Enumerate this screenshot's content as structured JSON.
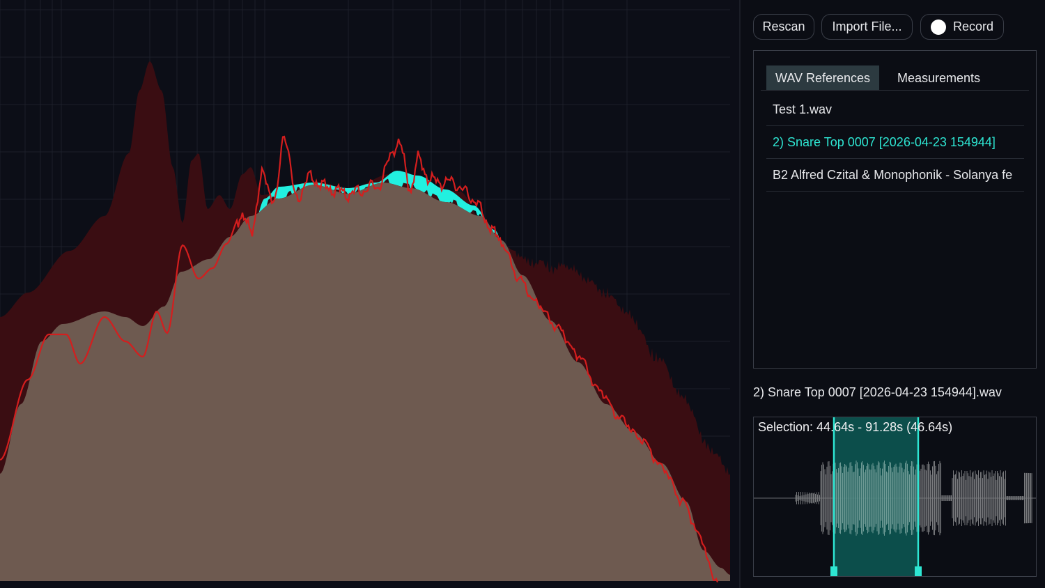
{
  "toolbar": {
    "rescan_label": "Rescan",
    "import_label": "Import File...",
    "record_label": "Record"
  },
  "references": {
    "tabs": [
      {
        "label": "WAV References",
        "active": true
      },
      {
        "label": "Measurements",
        "active": false
      }
    ],
    "items": [
      {
        "label": "Test 1.wav",
        "selected": false
      },
      {
        "label": "2) Snare Top 0007 [2026-04-23 154944]",
        "selected": true
      },
      {
        "label": "B2 Alfred Czital & Monophonik - Solanya fe",
        "selected": false
      }
    ]
  },
  "waveform": {
    "file_title": "2) Snare Top 0007 [2026-04-23 154944].wav",
    "selection_text": "Selection: 44.64s - 91.28s (46.64s)"
  },
  "colors": {
    "accent": "#2ee6d3",
    "reference_fill": "#3a0d12",
    "measurement_fill": "#6e5a50",
    "delta_fill": "#22f0e0",
    "trace_line": "#d41e1e",
    "selection_fill": "#0d5a55"
  }
}
